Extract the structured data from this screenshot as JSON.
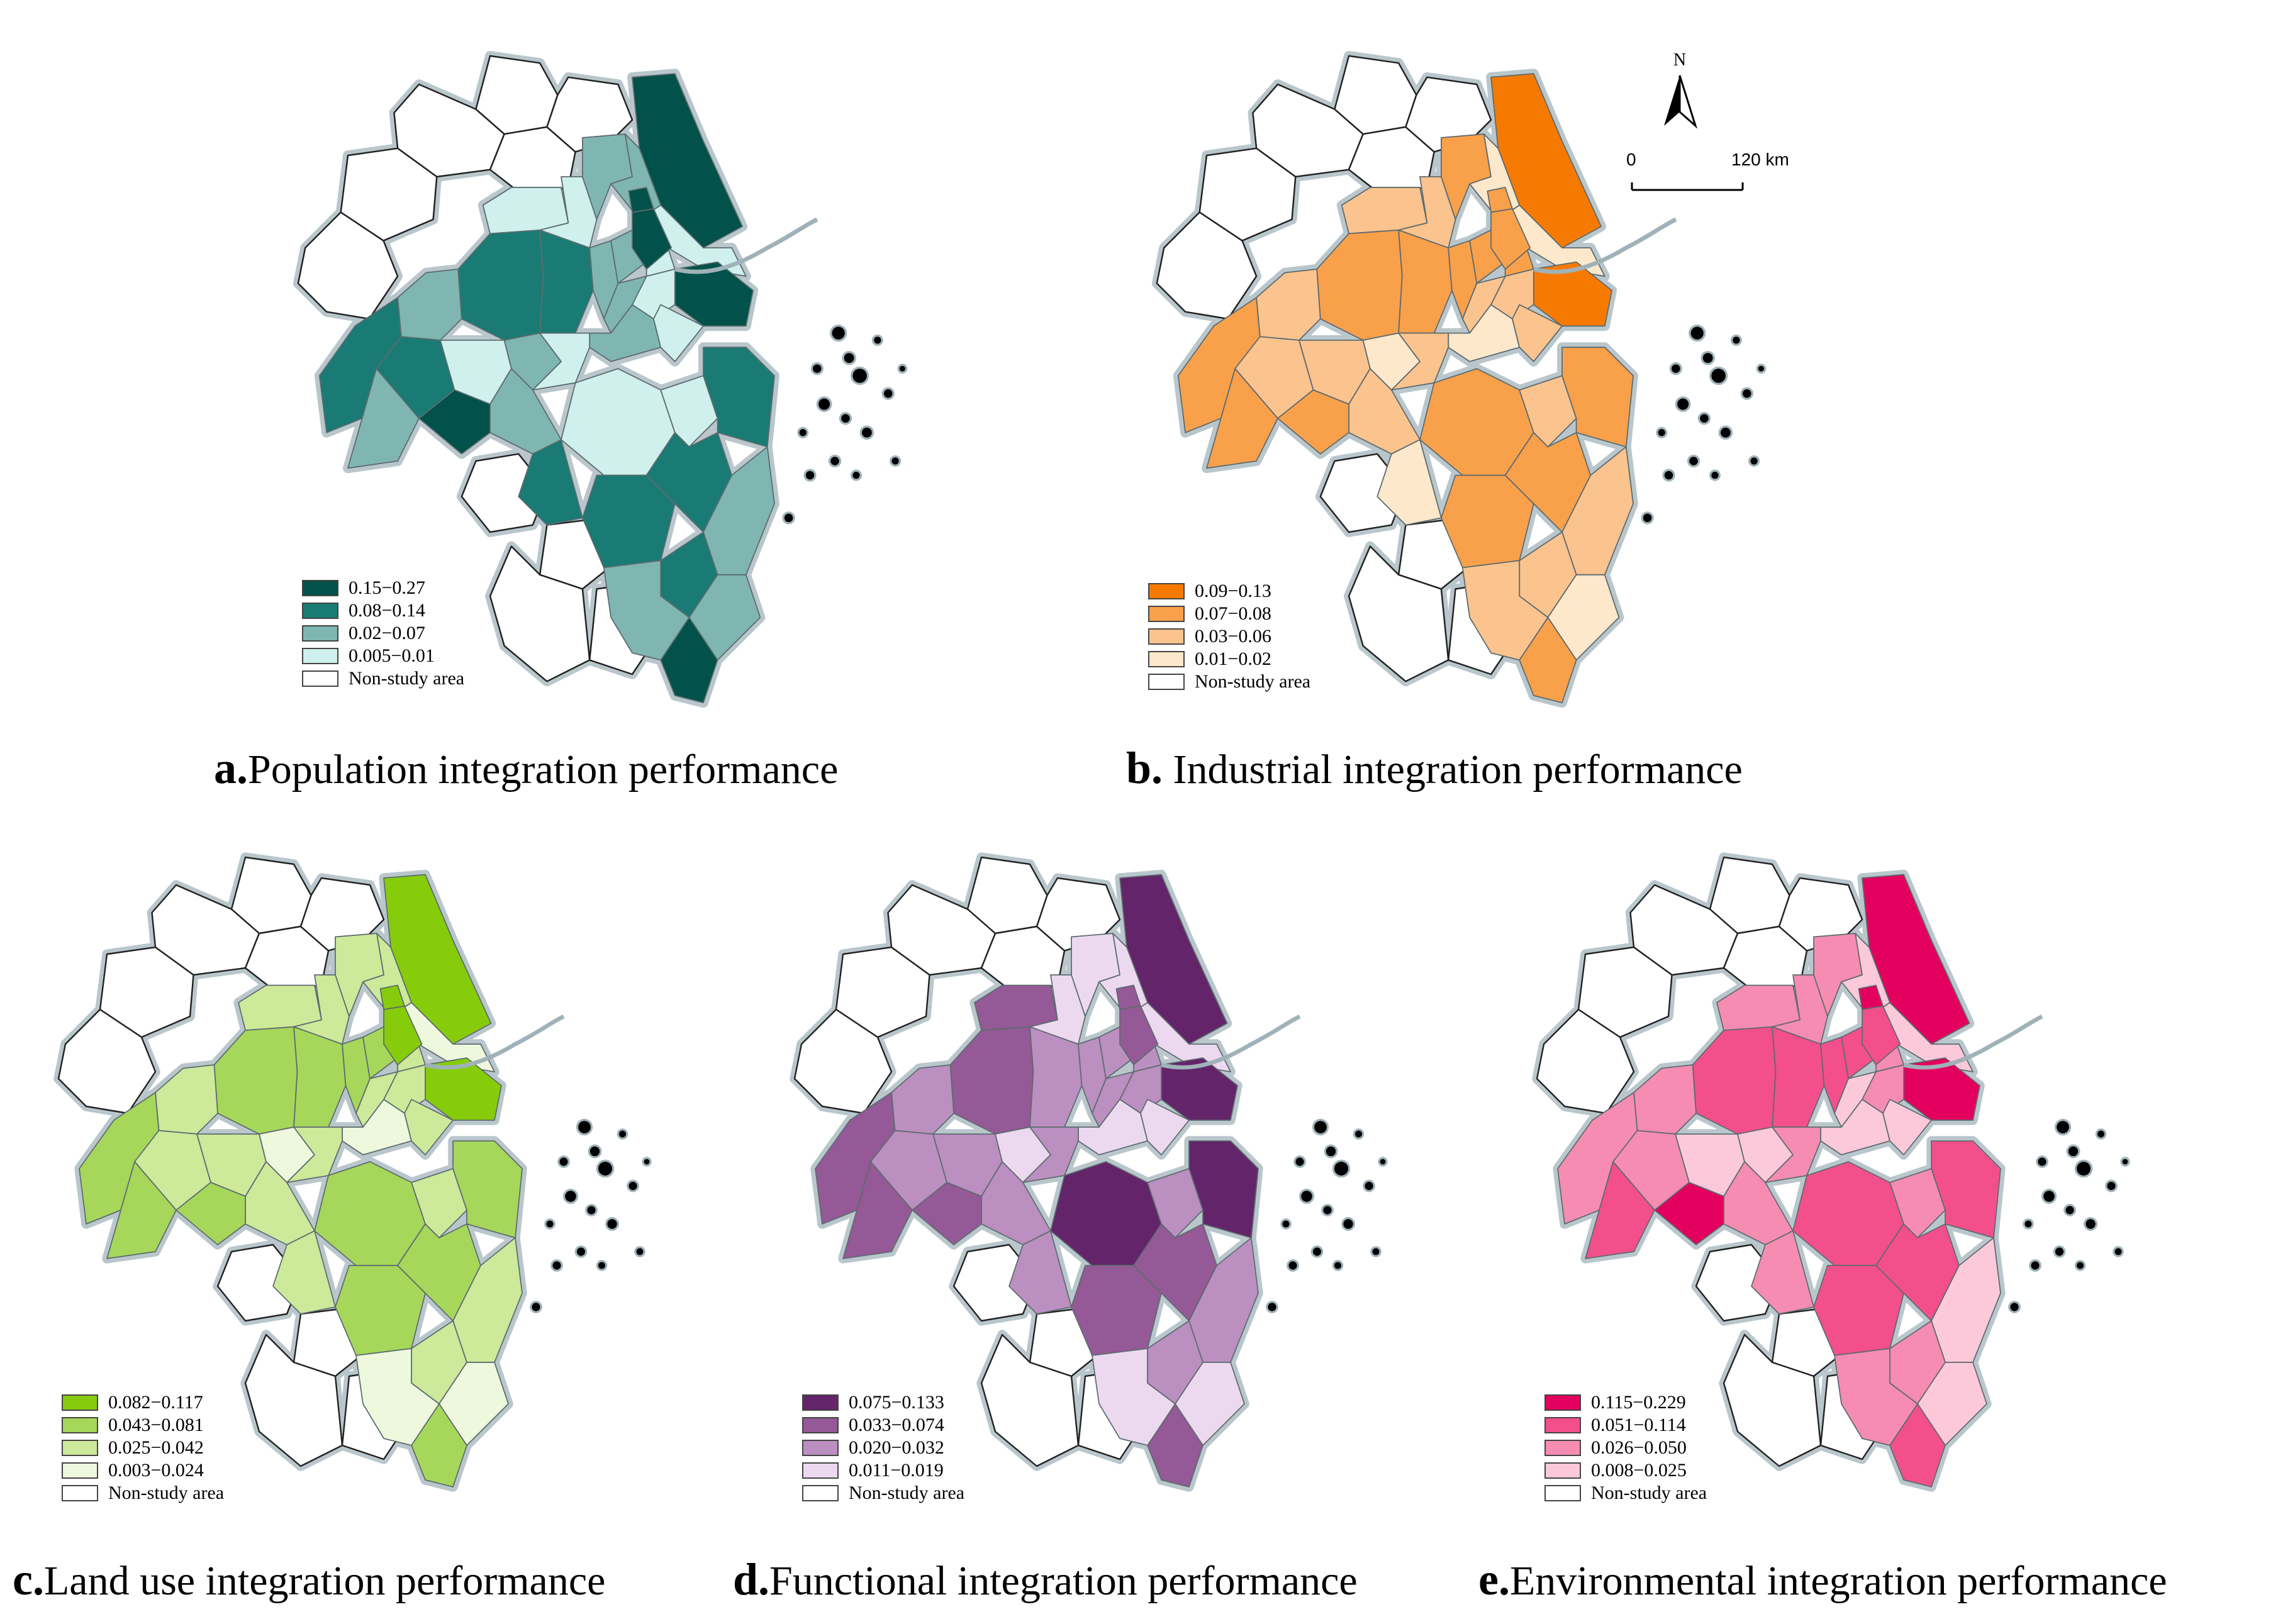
{
  "north_arrow": {
    "label": "N"
  },
  "scale_bar": {
    "start": "0",
    "end": "120 km"
  },
  "non_study_label": "Non-study area",
  "panels": [
    {
      "id": "a",
      "letter": "a.",
      "title": "Population integration performance",
      "classes": [
        {
          "label": "0.15−0.27",
          "color": "#02514a"
        },
        {
          "label": "0.08−0.14",
          "color": "#197b74"
        },
        {
          "label": "0.02−0.07",
          "color": "#7fb6b1"
        },
        {
          "label": "0.005−0.01",
          "color": "#cff0ec"
        }
      ]
    },
    {
      "id": "b",
      "letter": "b.",
      "title": " Industrial integration performance",
      "classes": [
        {
          "label": "0.09−0.13",
          "color": "#f77a00"
        },
        {
          "label": "0.07−0.08",
          "color": "#f9a04b"
        },
        {
          "label": "0.03−0.06",
          "color": "#fbc38e"
        },
        {
          "label": "0.01−0.02",
          "color": "#fde8cc"
        }
      ]
    },
    {
      "id": "c",
      "letter": "c.",
      "title": "Land use integration performance",
      "classes": [
        {
          "label": "0.082−0.117",
          "color": "#86cc0a"
        },
        {
          "label": "0.043−0.081",
          "color": "#a6d75a"
        },
        {
          "label": "0.025−0.042",
          "color": "#cde99a"
        },
        {
          "label": "0.003−0.024",
          "color": "#eef8dd"
        }
      ]
    },
    {
      "id": "d",
      "letter": "d.",
      "title": "Functional integration performance",
      "classes": [
        {
          "label": "0.075−0.133",
          "color": "#632469"
        },
        {
          "label": "0.033−0.074",
          "color": "#945996"
        },
        {
          "label": "0.020−0.032",
          "color": "#bb8fc0"
        },
        {
          "label": "0.011−0.019",
          "color": "#ecd9f0"
        }
      ]
    },
    {
      "id": "e",
      "letter": "e.",
      "title": "Environmental integration performance",
      "classes": [
        {
          "label": "0.115−0.229",
          "color": "#e4005e"
        },
        {
          "label": "0.051−0.114",
          "color": "#f34f8b"
        },
        {
          "label": "0.026−0.050",
          "color": "#f68cb1"
        },
        {
          "label": "0.008−0.025",
          "color": "#fcc9da"
        }
      ]
    }
  ],
  "map_classes": {
    "a": [
      0,
      1,
      1,
      3,
      3,
      2,
      2,
      3,
      0,
      2,
      2,
      3,
      3,
      2,
      2,
      3,
      0,
      0,
      2,
      1,
      1,
      3,
      2,
      3,
      2,
      3,
      3,
      1,
      1,
      1,
      2,
      2,
      0,
      1,
      2,
      0,
      2,
      1
    ],
    "b": [
      0,
      1,
      1,
      2,
      2,
      1,
      3,
      3,
      0,
      1,
      1,
      1,
      2,
      2,
      3,
      2,
      1,
      1,
      2,
      1,
      2,
      2,
      3,
      2,
      1,
      1,
      2,
      1,
      1,
      1,
      2,
      2,
      1,
      2,
      3,
      1,
      2,
      3
    ],
    "c": [
      0,
      1,
      1,
      2,
      2,
      2,
      2,
      3,
      0,
      1,
      1,
      2,
      2,
      2,
      3,
      2,
      0,
      0,
      2,
      1,
      2,
      2,
      3,
      2,
      1,
      1,
      2,
      1,
      1,
      1,
      2,
      2,
      1,
      2,
      3,
      1,
      3,
      2
    ],
    "d": [
      0,
      1,
      2,
      1,
      3,
      3,
      3,
      3,
      0,
      2,
      2,
      2,
      2,
      2,
      3,
      3,
      1,
      1,
      2,
      1,
      2,
      2,
      3,
      2,
      1,
      0,
      2,
      0,
      1,
      1,
      2,
      2,
      1,
      2,
      3,
      1,
      3,
      2
    ],
    "e": [
      0,
      1,
      1,
      2,
      2,
      2,
      3,
      3,
      0,
      1,
      1,
      2,
      2,
      3,
      3,
      3,
      1,
      0,
      2,
      2,
      2,
      3,
      3,
      2,
      1,
      1,
      2,
      1,
      1,
      1,
      3,
      2,
      0,
      2,
      3,
      1,
      2,
      2
    ]
  }
}
